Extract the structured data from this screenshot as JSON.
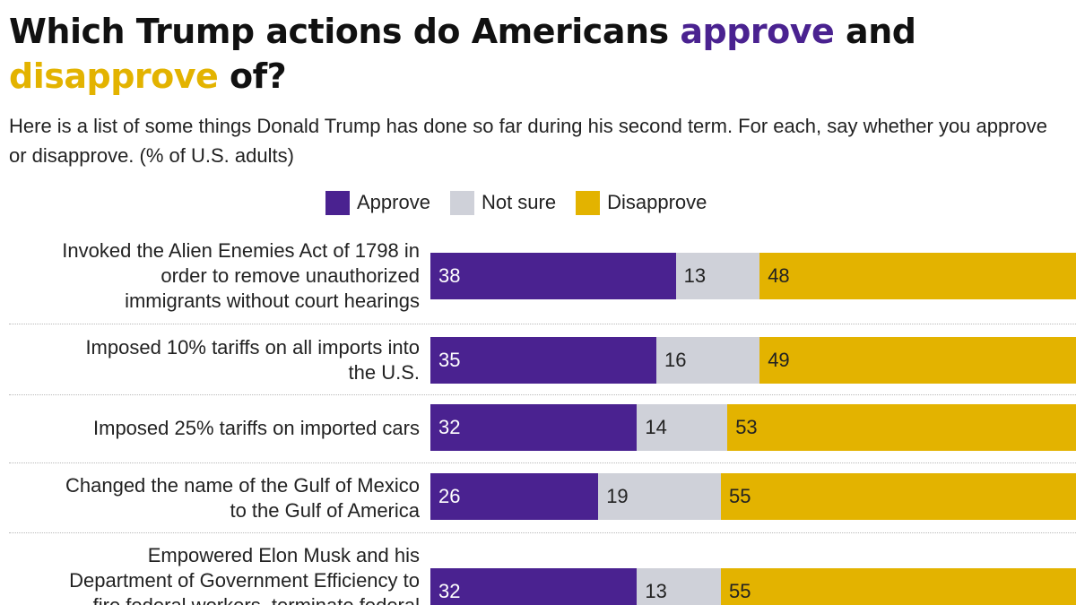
{
  "title": {
    "part1": "Which Trump actions do Americans ",
    "approve": "approve",
    "part2": " and ",
    "disapprove": "disapprove",
    "part3": " of?"
  },
  "subtitle": "Here is a list of some things Donald Trump has done so far during his second term. For each, say whether you approve or disapprove. (% of U.S. adults)",
  "colors": {
    "approve": "#4a2290",
    "not_sure": "#cfd1d9",
    "disapprove": "#e3b300"
  },
  "chart_data": {
    "type": "bar",
    "orientation": "horizontal",
    "stacked": true,
    "title": "Which Trump actions do Americans approve and disapprove of?",
    "legend": [
      "Approve",
      "Not sure",
      "Disapprove"
    ],
    "legend_position": "top",
    "categories": [
      [
        "Invoked the Alien Enemies Act of 1798 in",
        "order to remove unauthorized",
        "immigrants without court hearings"
      ],
      [
        "Imposed 10% tariffs on all imports into",
        "the U.S."
      ],
      [
        "Imposed 25% tariffs on imported cars"
      ],
      [
        "Changed the name of the Gulf of Mexico",
        "to the Gulf of America"
      ],
      [
        "Empowered Elon Musk and his",
        "Department of Government Efficiency to",
        "fire federal workers, terminate federal"
      ]
    ],
    "series": [
      {
        "name": "Approve",
        "values": [
          38,
          35,
          32,
          26,
          32
        ]
      },
      {
        "name": "Not sure",
        "values": [
          13,
          16,
          14,
          19,
          13
        ]
      },
      {
        "name": "Disapprove",
        "values": [
          48,
          49,
          53,
          55,
          55
        ]
      }
    ],
    "xlim": [
      0,
      100
    ]
  }
}
